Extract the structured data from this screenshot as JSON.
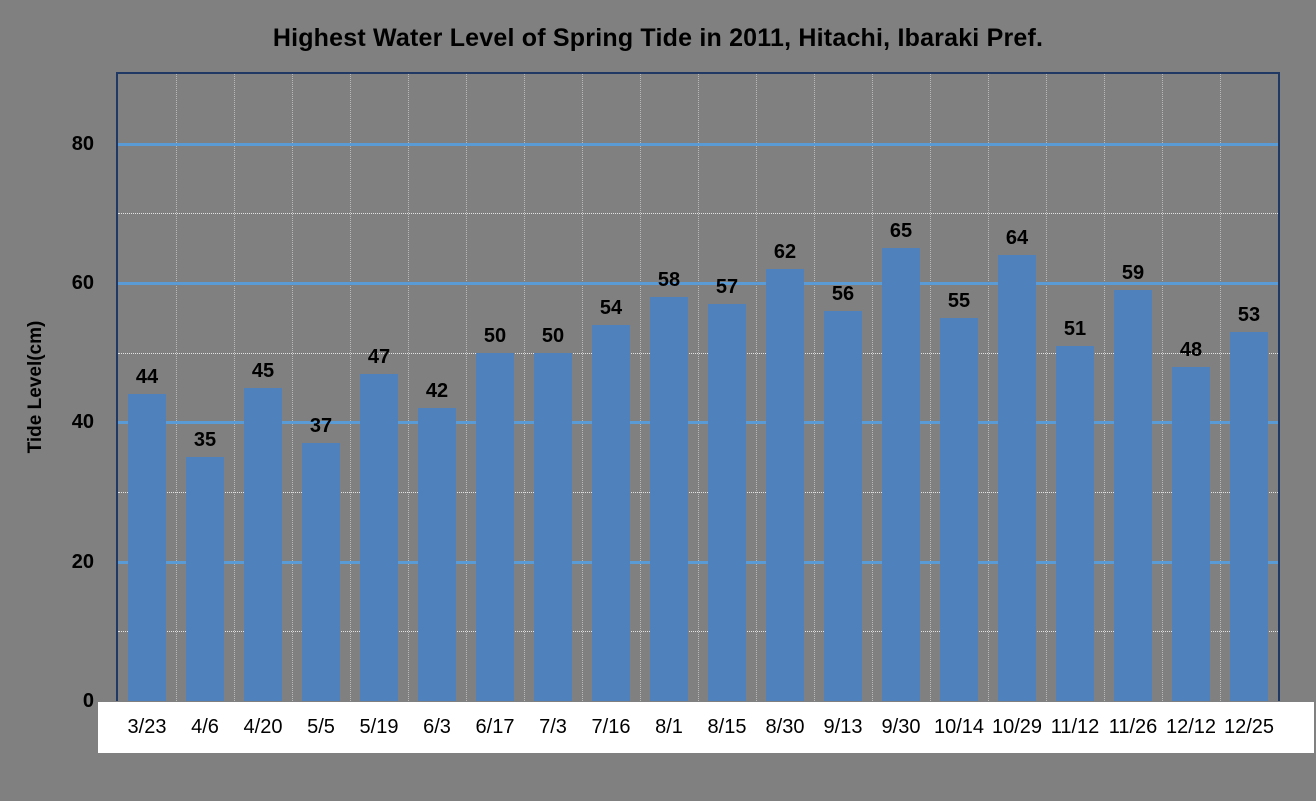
{
  "chart_data": {
    "type": "bar",
    "title": "Highest Water Level of Spring Tide in 2011, Hitachi, Ibaraki Pref.",
    "xlabel": "",
    "ylabel": "Tide Level(cm)",
    "categories": [
      "3/23",
      "4/6",
      "4/20",
      "5/5",
      "5/19",
      "6/3",
      "6/17",
      "7/3",
      "7/16",
      "8/1",
      "8/15",
      "8/30",
      "9/13",
      "9/30",
      "10/14",
      "10/29",
      "11/12",
      "11/26",
      "12/12",
      "12/25"
    ],
    "values": [
      44,
      35,
      45,
      37,
      47,
      42,
      50,
      50,
      54,
      58,
      57,
      62,
      56,
      65,
      55,
      64,
      51,
      59,
      48,
      53
    ],
    "series_name": "Highest Water Level",
    "ylim": [
      0,
      90
    ],
    "y_major_ticks": [
      0,
      20,
      40,
      60,
      80
    ],
    "y_minor_ticks": [
      10,
      30,
      50,
      70
    ],
    "grid": "major-solid, minor-dotted, vertical-dotted",
    "legend": "none",
    "data_labels": true,
    "colors": {
      "background": "#808080",
      "bar": "#4F81BD",
      "major_gridline": "#5B9BD5",
      "minor_gridline": "#E3E3E3",
      "vertical_gridline": "rgba(255,255,255,0.45)",
      "plot_border": "#1F3864",
      "x_label_strip": "#FFFFFF",
      "text": "#000000"
    }
  }
}
